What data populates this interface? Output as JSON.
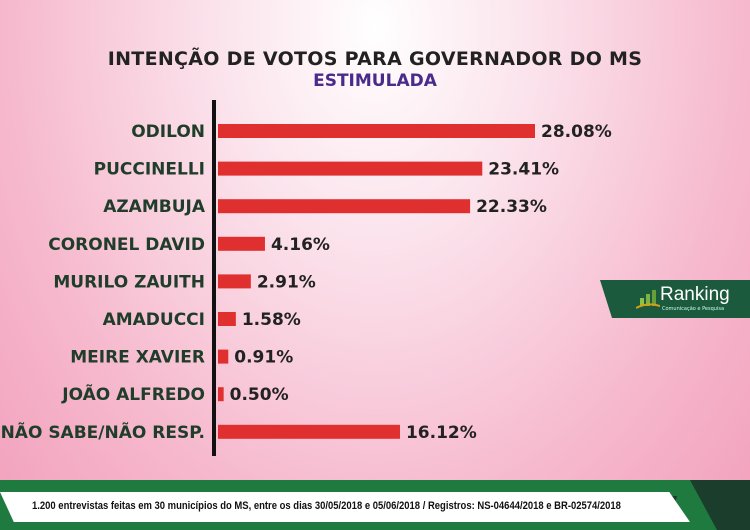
{
  "chart_data": {
    "type": "bar",
    "orientation": "horizontal",
    "title": "INTENÇÃO DE VOTOS PARA GOVERNADOR DO MS",
    "subtitle": "ESTIMULADA",
    "categories": [
      "ODILON",
      "PUCCINELLI",
      "AZAMBUJA",
      "CORONEL DAVID",
      "MURILO ZAUITH",
      "AMADUCCI",
      "MEIRE XAVIER",
      "JOÃO ALFREDO",
      "NÃO SABE/NÃO RESP."
    ],
    "values": [
      28.08,
      23.41,
      22.33,
      4.16,
      2.91,
      1.58,
      0.91,
      0.5,
      16.12
    ],
    "value_labels": [
      "28.08%",
      "23.41%",
      "22.33%",
      "4.16%",
      "2.91%",
      "1.58%",
      "0.91%",
      "0.50%",
      "16.12%"
    ],
    "xlim": [
      0,
      30
    ],
    "grid": false,
    "bar_color": "#e02f2f"
  },
  "logo": {
    "name": "Ranking",
    "tagline": "Comunicação e Pesquisa"
  },
  "footer": {
    "text": "1.200 entrevistas feitas em 30 municípios do MS, entre os dias 30/05/2018 e 05/06/2018 / Registros: NS-04644/2018 e BR-02574/2018"
  }
}
